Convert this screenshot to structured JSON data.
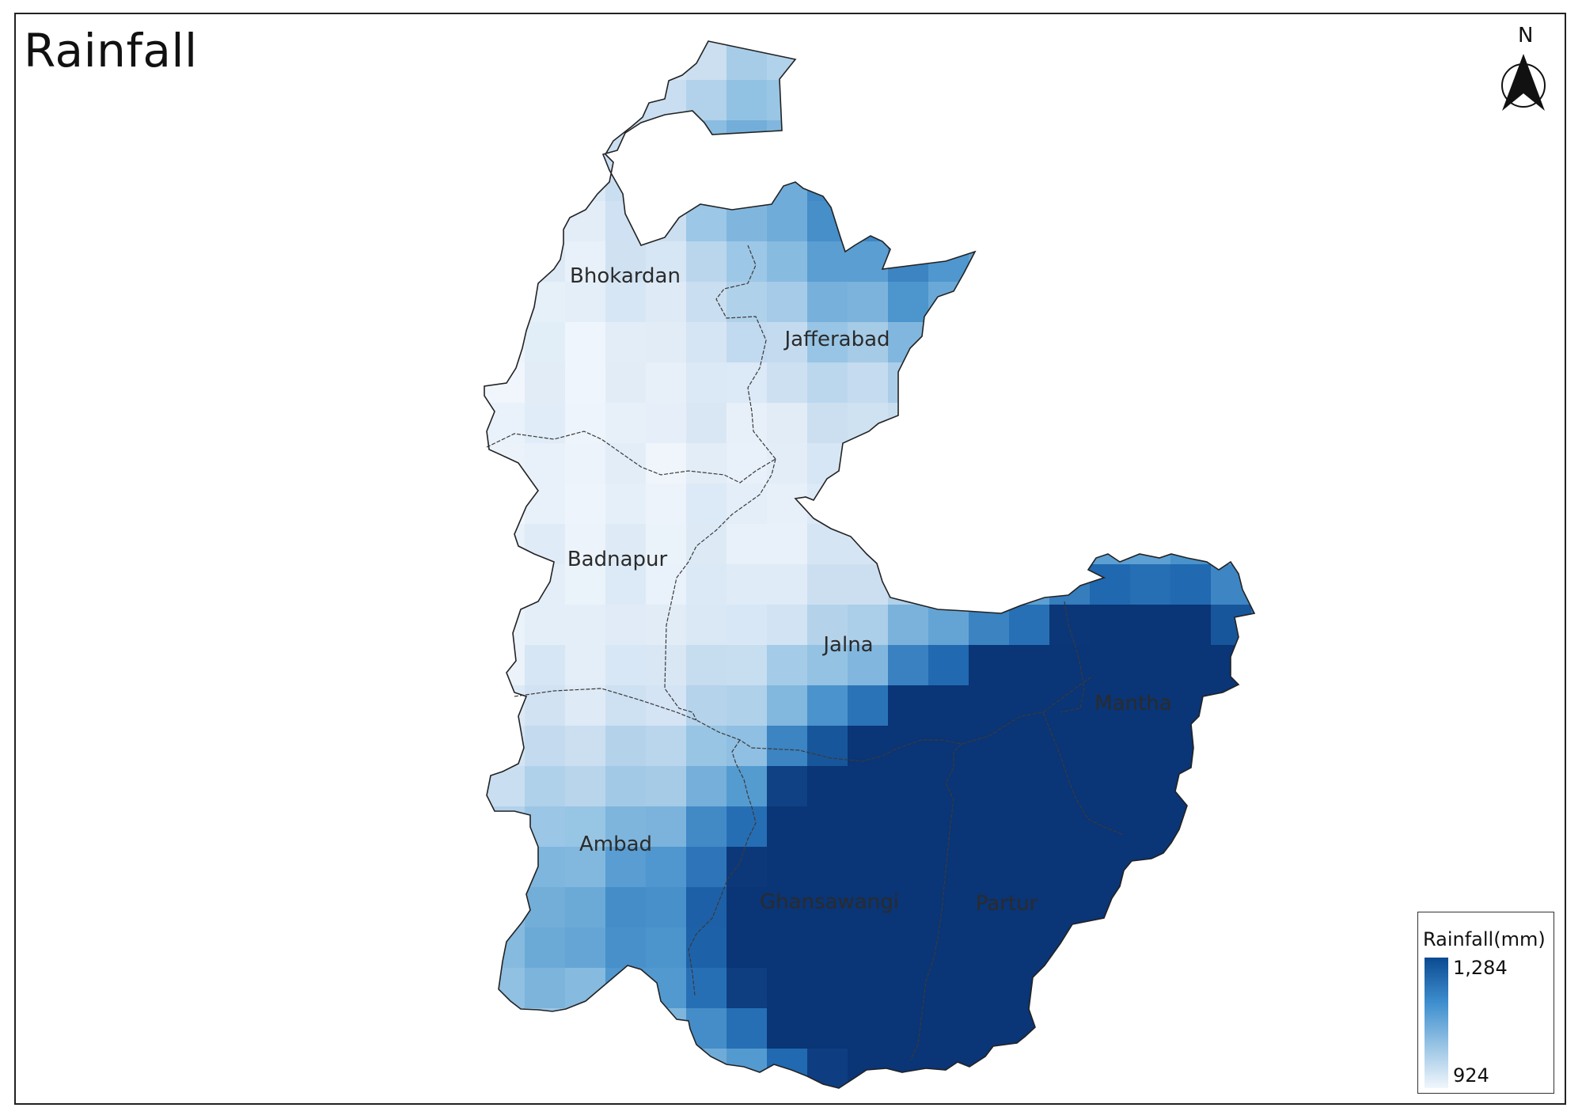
{
  "map": {
    "title": "Rainfall",
    "north_label": "N",
    "legend": {
      "title": "Rainfall(mm)",
      "max_label": "1,284",
      "min_label": "924",
      "min_value": 924,
      "max_value": 1284
    },
    "colors": {
      "low": "#f1f6fc",
      "high": "#0b4a92",
      "border": "#333333"
    },
    "places": [
      {
        "name": "Bhokardan"
      },
      {
        "name": "Jafferabad"
      },
      {
        "name": "Badnapur"
      },
      {
        "name": "Jalna"
      },
      {
        "name": "Mantha"
      },
      {
        "name": "Ambad"
      },
      {
        "name": "Ghansawangi"
      },
      {
        "name": "Partur"
      }
    ]
  }
}
